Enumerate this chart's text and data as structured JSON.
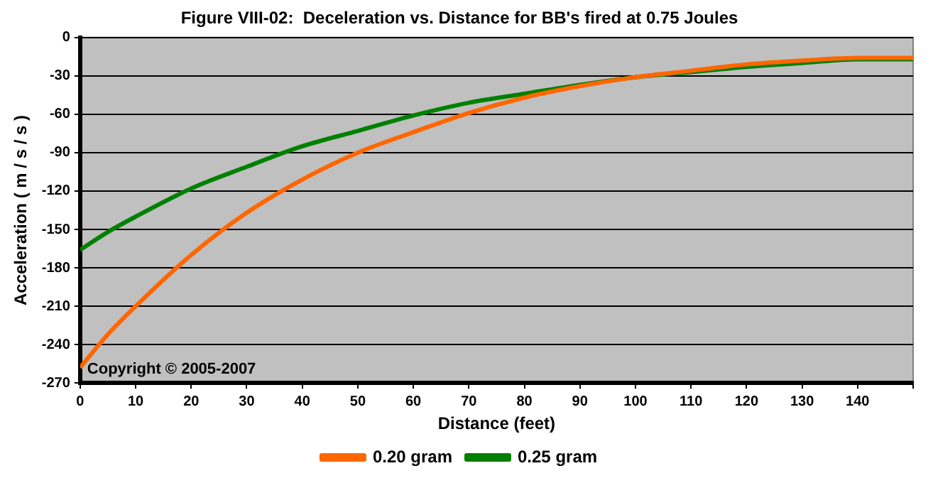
{
  "chart_data": {
    "type": "line",
    "title": "Figure VIII-02:  Deceleration vs. Distance for BB's fired at 0.75 Joules",
    "xlabel": "Distance (feet)",
    "ylabel": "Acceleration ( m / s / s )",
    "x": [
      0,
      5,
      10,
      20,
      30,
      40,
      50,
      60,
      70,
      80,
      90,
      100,
      110,
      120,
      130,
      140,
      150
    ],
    "series": [
      {
        "name": "0.20 gram",
        "color": "#ff6600",
        "values": [
          -258,
          -232,
          -210,
          -170,
          -137,
          -111,
          -90,
          -74,
          -59,
          -47,
          -38,
          -31,
          -26,
          -21,
          -18,
          -16,
          -16
        ]
      },
      {
        "name": "0.25 gram",
        "color": "#008000",
        "values": [
          -166,
          -152,
          -140,
          -118,
          -101,
          -85,
          -73,
          -61,
          -51,
          -44,
          -37,
          -31,
          -27,
          -23,
          -20,
          -17,
          -17
        ]
      }
    ],
    "xlim": [
      0,
      150
    ],
    "xticks": [
      0,
      10,
      20,
      30,
      40,
      50,
      60,
      70,
      80,
      90,
      100,
      110,
      120,
      130,
      140,
      {
        "value": 150,
        "label": null
      }
    ],
    "ylim": [
      -270,
      0
    ],
    "yticks": [
      -270,
      -240,
      -210,
      -180,
      -150,
      -120,
      -90,
      -60,
      -30,
      0
    ],
    "grid": "y",
    "legend": "bottom",
    "marker": "none",
    "line_style": "solid",
    "annotations": [
      "Copyright © 2005-2007"
    ]
  }
}
